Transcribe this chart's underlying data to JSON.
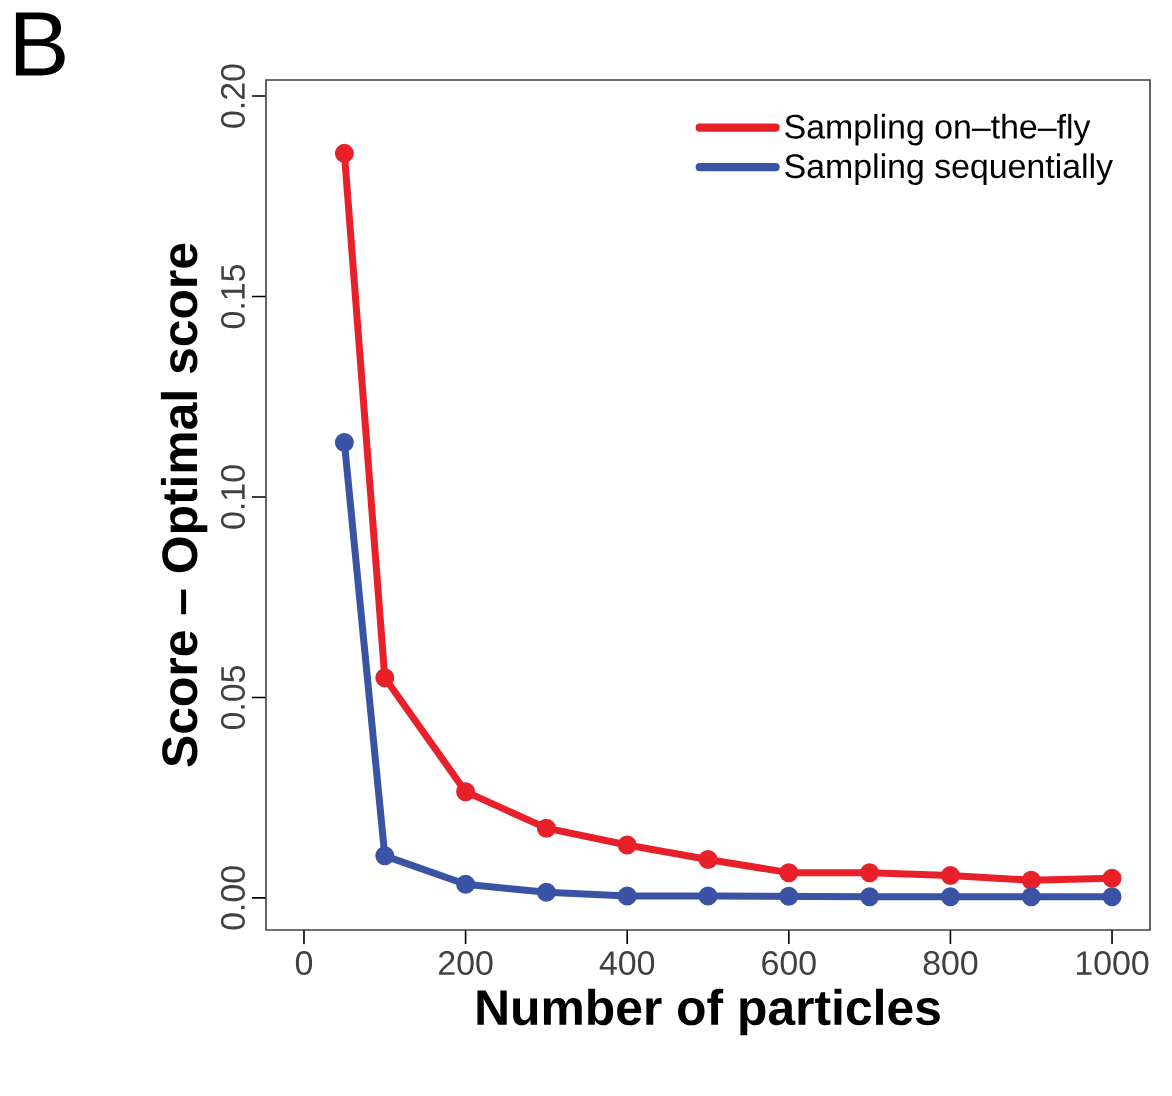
{
  "chart_data": {
    "type": "line",
    "xlabel": "Number of particles",
    "ylabel": "Score – Optimal score",
    "annotations": [
      "B"
    ],
    "x": [
      50,
      100,
      200,
      300,
      400,
      500,
      600,
      700,
      800,
      900,
      1000
    ],
    "series": [
      {
        "name": "Sampling on–the–fly",
        "color": "#e8202a",
        "values": [
          0.1857,
          0.0549,
          0.0265,
          0.0174,
          0.0132,
          0.0096,
          0.0063,
          0.0063,
          0.0056,
          0.0044,
          0.0049
        ]
      },
      {
        "name": "Sampling sequentially",
        "color": "#3a53a4",
        "values": [
          0.1136,
          0.0105,
          0.0034,
          0.0014,
          0.0005,
          0.0005,
          0.0004,
          0.0003,
          0.0003,
          0.0003,
          0.0003
        ]
      }
    ],
    "xlim": [
      -47,
      1047
    ],
    "ylim": [
      -0.008,
      0.204
    ],
    "xticks": [
      0,
      200,
      400,
      600,
      800,
      1000
    ],
    "yticks": [
      {
        "value": 0,
        "label": "0.00"
      },
      {
        "value": 0.05,
        "label": "0.05"
      },
      {
        "value": 0.1,
        "label": "0.10"
      },
      {
        "value": 0.15,
        "label": "0.15"
      },
      {
        "value": 0.2,
        "label": "0.20"
      }
    ],
    "marker": "circle",
    "line_style": "solid",
    "legend": "top right",
    "grid": false
  }
}
